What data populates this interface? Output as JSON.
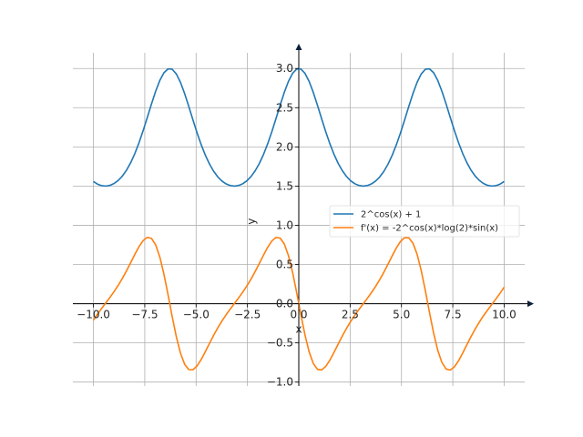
{
  "chart_data": {
    "type": "line",
    "title": "",
    "xlabel": "x",
    "ylabel": "y",
    "xlim": [
      -11,
      11
    ],
    "ylim": [
      -1.05,
      3.2
    ],
    "xticks": [
      -10,
      -7.5,
      -5,
      -2.5,
      0,
      2.5,
      5,
      7.5,
      10
    ],
    "xtick_labels": [
      "−10.0",
      "−7.5",
      "−5.0",
      "−2.5",
      "0.0",
      "2.5",
      "5.0",
      "7.5",
      "10.0"
    ],
    "yticks": [
      -1,
      -0.5,
      0,
      0.5,
      1,
      1.5,
      2,
      2.5,
      3
    ],
    "ytick_labels": [
      "−1.0",
      "−0.5",
      "0.0",
      "0.5",
      "1.0",
      "1.5",
      "2.0",
      "2.5",
      "3.0"
    ],
    "grid": true,
    "legend_position": "center-right",
    "x_range": [
      -10,
      10
    ],
    "series": [
      {
        "name": "2^cos(x) + 1",
        "color": "#1f77b4",
        "expression": "2^cos(x) + 1"
      },
      {
        "name": "f'(x) = -2^cos(x)*log(2)*sin(x)",
        "color": "#ff7f0e",
        "expression": "-2^cos(x)*log(2)*sin(x)"
      }
    ]
  }
}
